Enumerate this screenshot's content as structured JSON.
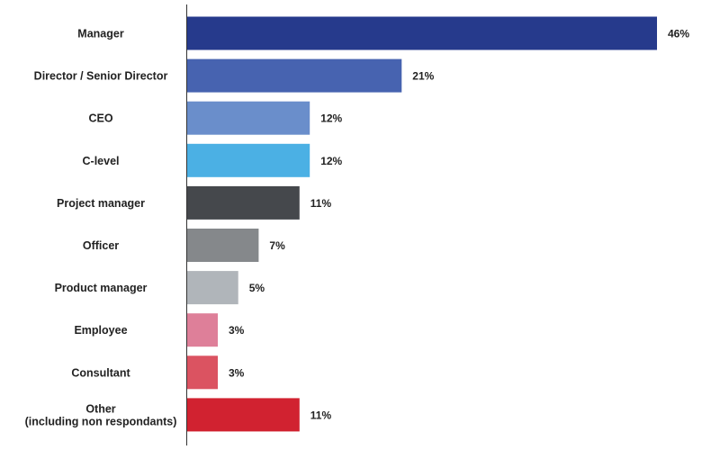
{
  "chart_data": {
    "type": "bar",
    "orientation": "horizontal",
    "categories": [
      "Manager",
      "Director / Senior Director",
      "CEO",
      "C-level",
      "Project manager",
      "Officer",
      "Product manager",
      "Employee",
      "Consultant",
      "Other\n(including non respondants)"
    ],
    "values": [
      46,
      21,
      12,
      12,
      11,
      7,
      5,
      3,
      3,
      11
    ],
    "value_labels": [
      "46%",
      "21%",
      "12%",
      "12%",
      "11%",
      "7%",
      "5%",
      "3%",
      "3%",
      "11%"
    ],
    "colors": [
      "#263a8c",
      "#4763b0",
      "#6a8ecb",
      "#4bb0e4",
      "#45484c",
      "#85888b",
      "#b0b5ba",
      "#de7f99",
      "#db5361",
      "#d12230"
    ],
    "unit": "%",
    "title": "",
    "xlabel": "",
    "ylabel": "",
    "xlim": [
      0,
      46
    ],
    "grid": false,
    "legend": "none"
  }
}
